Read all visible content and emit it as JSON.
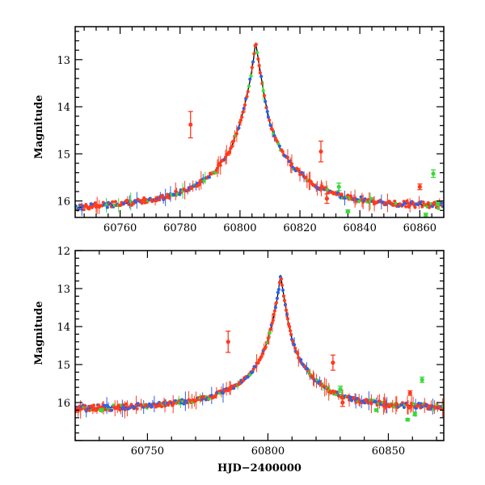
{
  "chart_data": [
    {
      "type": "scatter",
      "panel": "top",
      "title": "",
      "xlabel": "",
      "ylabel": "Magnitude",
      "xlim": [
        60745,
        60868
      ],
      "ylim": [
        16.35,
        12.3
      ],
      "y_inverted": true,
      "x_ticks": [
        60760,
        60780,
        60800,
        60820,
        60840,
        60860
      ],
      "y_ticks": [
        13,
        14,
        15,
        16
      ],
      "grid": false,
      "legend": "none",
      "model_line": {
        "name": "",
        "color": "#000000",
        "x": [
          60745,
          60760,
          60775,
          60785,
          60792,
          60797,
          60800,
          60802,
          60803.5,
          60804.5,
          60805.2,
          60806,
          60807,
          60808.5,
          60810,
          60813,
          60818,
          60825,
          60835,
          60850,
          60868
        ],
        "y": [
          16.14,
          16.07,
          15.92,
          15.7,
          15.35,
          14.88,
          14.35,
          13.85,
          13.4,
          13.0,
          12.62,
          12.95,
          13.35,
          13.9,
          14.35,
          14.85,
          15.3,
          15.68,
          15.92,
          16.05,
          16.1
        ]
      },
      "outliers": [
        {
          "color": "#ff3b1f",
          "x": 60783.5,
          "y": 14.38,
          "err": 0.28
        },
        {
          "color": "#ff3b1f",
          "x": 60827,
          "y": 14.95,
          "err": 0.22
        },
        {
          "color": "#ff3b1f",
          "x": 60829,
          "y": 15.95,
          "err": 0.1
        },
        {
          "color": "#ff3b1f",
          "x": 60860,
          "y": 15.7,
          "err": 0.06
        },
        {
          "color": "#3bd93b",
          "x": 60833,
          "y": 15.7,
          "err": 0.08
        },
        {
          "color": "#3bd93b",
          "x": 60836,
          "y": 16.22,
          "err": 0.03
        },
        {
          "color": "#3bd93b",
          "x": 60864.5,
          "y": 15.42,
          "err": 0.08
        },
        {
          "color": "#3bd93b",
          "x": 60862,
          "y": 16.3,
          "err": 0.04
        },
        {
          "color": "#3bd93b",
          "x": 60866,
          "y": 16.05,
          "err": 0.05
        }
      ]
    },
    {
      "type": "scatter",
      "panel": "bottom",
      "title": "",
      "xlabel": "HJD−2400000",
      "ylabel": "Magnitude",
      "xlim": [
        60720,
        60873
      ],
      "ylim": [
        17,
        12
      ],
      "y_inverted": true,
      "x_ticks": [
        60750,
        60800,
        60850
      ],
      "y_ticks": [
        12,
        13,
        14,
        15,
        16
      ],
      "grid": false,
      "legend": "none",
      "model_line": {
        "name": "",
        "color": "#000000",
        "x": [
          60720,
          60740,
          60760,
          60775,
          60785,
          60792,
          60797,
          60800,
          60802,
          60803.5,
          60804.5,
          60805.3,
          60806,
          60807,
          60808.5,
          60810,
          60813,
          60818,
          60825,
          60835,
          60850,
          60873
        ],
        "y": [
          16.16,
          16.12,
          16.03,
          15.88,
          15.62,
          15.3,
          14.85,
          14.35,
          13.85,
          13.4,
          13.0,
          12.62,
          12.95,
          13.35,
          13.9,
          14.35,
          14.85,
          15.3,
          15.68,
          15.92,
          16.05,
          16.12
        ]
      },
      "outliers": [
        {
          "color": "#ff3b1f",
          "x": 60783.5,
          "y": 14.4,
          "err": 0.28
        },
        {
          "color": "#ff3b1f",
          "x": 60827,
          "y": 14.95,
          "err": 0.2
        },
        {
          "color": "#ff3b1f",
          "x": 60831,
          "y": 16.0,
          "err": 0.1
        },
        {
          "color": "#ff3b1f",
          "x": 60859,
          "y": 15.75,
          "err": 0.06
        },
        {
          "color": "#3bd93b",
          "x": 60830,
          "y": 15.65,
          "err": 0.08
        },
        {
          "color": "#3bd93b",
          "x": 60845,
          "y": 16.2,
          "err": 0.03
        },
        {
          "color": "#3bd93b",
          "x": 60858,
          "y": 16.45,
          "err": 0.03
        },
        {
          "color": "#3bd93b",
          "x": 60864,
          "y": 15.4,
          "err": 0.07
        },
        {
          "color": "#3bd93b",
          "x": 60861,
          "y": 16.3,
          "err": 0.05
        },
        {
          "color": "#3bd93b",
          "x": 60731,
          "y": 16.2,
          "err": 0.04
        }
      ]
    }
  ],
  "series_colors": {
    "red": "#ff3b1f",
    "blue": "#2a62e8",
    "green": "#3bd93b",
    "model": "#000000"
  }
}
